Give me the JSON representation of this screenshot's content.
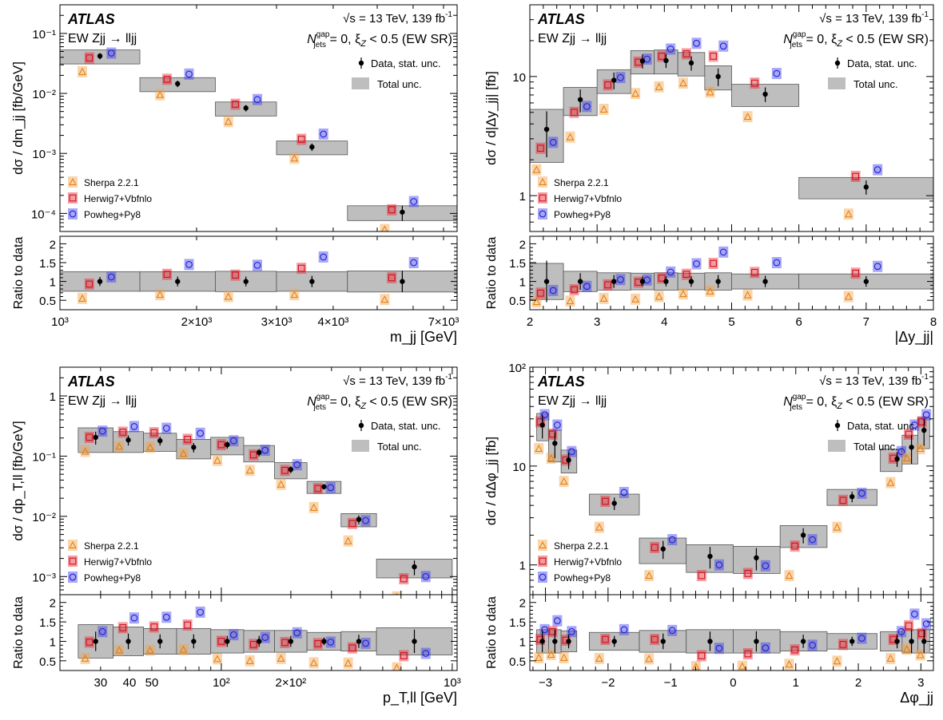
{
  "header": {
    "experiment": "ATLAS",
    "energy": "√s = 13 TeV, 139 fb",
    "energy_sup": "-1",
    "process": "EW Zjj → lljj",
    "region_pre": "N",
    "region_sup": "gap",
    "region_sub": "jets",
    "region_post": " = 0, ξ",
    "region_sub2": "Z",
    "region_tail": " < 0.5 (EW SR)"
  },
  "legend": {
    "data": "Data, stat. unc.",
    "total": "Total unc.",
    "sherpa": "Sherpa 2.2.1",
    "herwig": "Herwig7+Vbfnlo",
    "powheg": "Powheg+Py8"
  },
  "colors": {
    "data": "#000000",
    "total": "#bebebe",
    "sherpa": "#f5a142",
    "herwig": "#e8262f",
    "powheg": "#3b3cf0"
  },
  "ratio_ylabel": "Ratio to data",
  "chart_data": [
    {
      "type": "scatter",
      "panel": "mjj",
      "ylabel": "dσ / dm_jj [fb/GeV]",
      "xlabel": "m_jj [GeV]",
      "xscale": "log",
      "yscale": "log",
      "xlim": [
        1000,
        7500
      ],
      "ylim": [
        5e-05,
        0.3
      ],
      "ratio_ylim": [
        0.25,
        2.2
      ],
      "xticks": [
        [
          1000,
          "10³"
        ],
        [
          2000,
          "2×10³"
        ],
        [
          3000,
          "3×10³"
        ],
        [
          4000,
          "4×10³"
        ],
        [
          7000,
          "7×10³"
        ]
      ],
      "yticks": [
        [
          0.0001,
          "10⁻⁴"
        ],
        [
          0.001,
          "10⁻³"
        ],
        [
          0.01,
          "10⁻²"
        ],
        [
          0.1,
          "10⁻¹"
        ]
      ],
      "ratio_yticks": [
        [
          0.5,
          "0.5"
        ],
        [
          1,
          "1"
        ],
        [
          1.5,
          "1.5"
        ],
        [
          2,
          "2"
        ]
      ],
      "bins": [
        [
          1000,
          1500
        ],
        [
          1500,
          2200
        ],
        [
          2200,
          3000
        ],
        [
          3000,
          4300
        ],
        [
          4300,
          7500
        ]
      ],
      "data": [
        0.042,
        0.0145,
        0.0057,
        0.00128,
        0.000105
      ],
      "data_err": [
        0.005,
        0.0018,
        0.0007,
        0.00018,
        3e-05
      ],
      "total_err": [
        0.011,
        0.0038,
        0.0015,
        0.00033,
        2.9e-05
      ],
      "sherpa": [
        0.023,
        0.0095,
        0.0034,
        0.00083,
        5.4e-05
      ],
      "herwig": [
        0.039,
        0.0172,
        0.0066,
        0.00172,
        0.000115
      ],
      "powheg": [
        0.047,
        0.021,
        0.0079,
        0.0021,
        0.000158
      ],
      "ratio_data_err": [
        0.12,
        0.13,
        0.13,
        0.15,
        0.28
      ],
      "ratio_total": [
        0.26,
        0.26,
        0.27,
        0.26,
        0.28
      ],
      "ratio_sherpa": [
        0.55,
        0.65,
        0.6,
        0.65,
        0.52
      ],
      "ratio_herwig": [
        0.93,
        1.19,
        1.17,
        1.35,
        1.1
      ],
      "ratio_powheg": [
        1.12,
        1.45,
        1.43,
        1.65,
        1.5
      ]
    },
    {
      "type": "scatter",
      "panel": "dyjj",
      "ylabel": "dσ / d|Δy_jj| [fb]",
      "xlabel": "|Δy_jj|",
      "xscale": "linear",
      "yscale": "log",
      "xlim": [
        2,
        8
      ],
      "ylim": [
        0.5,
        40
      ],
      "ratio_ylim": [
        0.25,
        2.2
      ],
      "xticks": [
        [
          2,
          "2"
        ],
        [
          3,
          "3"
        ],
        [
          4,
          "4"
        ],
        [
          5,
          "5"
        ],
        [
          6,
          "6"
        ],
        [
          7,
          "7"
        ],
        [
          8,
          "8"
        ]
      ],
      "yticks": [
        [
          1,
          "1"
        ],
        [
          10,
          "10"
        ]
      ],
      "ratio_yticks": [
        [
          0.5,
          "0.5"
        ],
        [
          1,
          "1"
        ],
        [
          1.5,
          "1.5"
        ],
        [
          2,
          "2"
        ]
      ],
      "bins": [
        [
          2,
          2.5
        ],
        [
          2.5,
          3
        ],
        [
          3,
          3.5
        ],
        [
          3.5,
          3.85
        ],
        [
          3.85,
          4.2
        ],
        [
          4.2,
          4.6
        ],
        [
          4.6,
          5
        ],
        [
          5,
          6
        ],
        [
          6,
          8
        ]
      ],
      "data": [
        3.6,
        6.4,
        9.3,
        13.5,
        13.6,
        13.0,
        10.0,
        7.1,
        1.18
      ],
      "data_err": [
        1.5,
        1.4,
        1.5,
        1.8,
        1.8,
        1.8,
        1.7,
        1.0,
        0.16
      ],
      "total_err": [
        1.7,
        1.7,
        2.1,
        3.0,
        3.1,
        2.9,
        2.3,
        1.5,
        0.24
      ],
      "sherpa": [
        1.65,
        3.1,
        5.3,
        7.2,
        8.2,
        8.8,
        7.4,
        4.6,
        0.7
      ],
      "herwig": [
        2.5,
        5.0,
        8.5,
        13.2,
        14.8,
        15.5,
        14.8,
        8.8,
        1.45
      ],
      "powheg": [
        2.8,
        5.6,
        9.8,
        14.0,
        17.0,
        19.0,
        18.0,
        10.6,
        1.65
      ],
      "ratio_data_err": [
        0.55,
        0.22,
        0.17,
        0.13,
        0.13,
        0.14,
        0.17,
        0.15,
        0.14
      ],
      "ratio_total": [
        0.48,
        0.27,
        0.23,
        0.22,
        0.23,
        0.22,
        0.23,
        0.2,
        0.2
      ],
      "ratio_sherpa": [
        0.46,
        0.48,
        0.55,
        0.53,
        0.6,
        0.67,
        0.74,
        0.64,
        0.6
      ],
      "ratio_herwig": [
        0.69,
        0.78,
        0.91,
        0.98,
        1.09,
        1.19,
        1.48,
        1.24,
        1.22
      ],
      "ratio_powheg": [
        0.76,
        0.87,
        1.05,
        1.04,
        1.25,
        1.47,
        1.78,
        1.5,
        1.4
      ]
    },
    {
      "type": "scatter",
      "panel": "ptll",
      "ylabel": "dσ / dp_T,ll [fb/GeV]",
      "xlabel": "p_T,ll [GeV]",
      "xscale": "log",
      "yscale": "log",
      "xlim": [
        20,
        1050
      ],
      "ylim": [
        0.0005,
        3
      ],
      "ratio_ylim": [
        0.25,
        2.2
      ],
      "xticks": [
        [
          30,
          "30"
        ],
        [
          40,
          "40"
        ],
        [
          50,
          "50"
        ],
        [
          100,
          "10²"
        ],
        [
          200,
          "2×10²"
        ],
        [
          1000,
          "10³"
        ]
      ],
      "yticks": [
        [
          0.001,
          "10⁻³"
        ],
        [
          0.01,
          "10⁻²"
        ],
        [
          0.1,
          "10⁻¹"
        ],
        [
          1,
          "1"
        ]
      ],
      "ratio_yticks": [
        [
          0.5,
          "0.5"
        ],
        [
          1,
          "1"
        ],
        [
          1.5,
          "1.5"
        ],
        [
          2,
          "2"
        ]
      ],
      "bins": [
        [
          24,
          34
        ],
        [
          34,
          46
        ],
        [
          46,
          64
        ],
        [
          64,
          90
        ],
        [
          90,
          125
        ],
        [
          125,
          170
        ],
        [
          170,
          235
        ],
        [
          235,
          330
        ],
        [
          330,
          470
        ],
        [
          470,
          1000
        ]
      ],
      "data": [
        0.205,
        0.185,
        0.18,
        0.14,
        0.155,
        0.115,
        0.06,
        0.031,
        0.0089,
        0.00145
      ],
      "data_err": [
        0.05,
        0.035,
        0.03,
        0.025,
        0.022,
        0.016,
        0.008,
        0.003,
        0.0015,
        0.0004
      ],
      "total_err": [
        0.09,
        0.07,
        0.06,
        0.05,
        0.05,
        0.035,
        0.018,
        0.007,
        0.0022,
        0.0005
      ],
      "sherpa": [
        0.12,
        0.145,
        0.14,
        0.11,
        0.085,
        0.058,
        0.034,
        0.014,
        0.0039,
        0.00046
      ],
      "herwig": [
        0.205,
        0.25,
        0.245,
        0.19,
        0.155,
        0.105,
        0.058,
        0.029,
        0.0076,
        0.00092
      ],
      "powheg": [
        0.26,
        0.31,
        0.29,
        0.24,
        0.18,
        0.125,
        0.072,
        0.03,
        0.0085,
        0.001
      ],
      "ratio_data_err": [
        0.25,
        0.2,
        0.18,
        0.18,
        0.14,
        0.14,
        0.14,
        0.1,
        0.17,
        0.3
      ],
      "ratio_total": [
        0.43,
        0.37,
        0.33,
        0.33,
        0.3,
        0.28,
        0.28,
        0.23,
        0.25,
        0.35
      ],
      "ratio_sherpa": [
        0.56,
        0.77,
        0.77,
        0.79,
        0.55,
        0.5,
        0.56,
        0.45,
        0.44,
        0.32
      ],
      "ratio_herwig": [
        0.98,
        1.35,
        1.37,
        1.42,
        1.0,
        0.92,
        0.97,
        0.94,
        0.83,
        0.63
      ],
      "ratio_powheg": [
        1.25,
        1.6,
        1.62,
        1.75,
        1.17,
        1.1,
        1.22,
        0.98,
        0.95,
        0.69
      ]
    },
    {
      "type": "scatter",
      "panel": "dphijj",
      "ylabel": "dσ / dΔφ_jj [fb]",
      "xlabel": "Δφ_jj",
      "xscale": "linear",
      "yscale": "log",
      "xlim": [
        -3.25,
        3.2
      ],
      "ylim": [
        0.5,
        100
      ],
      "ratio_ylim": [
        0.25,
        2.2
      ],
      "xticks": [
        [
          -3,
          "−3"
        ],
        [
          -2,
          "−2"
        ],
        [
          -1,
          "−1"
        ],
        [
          0,
          "0"
        ],
        [
          1,
          "1"
        ],
        [
          2,
          "2"
        ],
        [
          3,
          "3"
        ]
      ],
      "yticks": [
        [
          1,
          "1"
        ],
        [
          10,
          "10"
        ],
        [
          100,
          "10²"
        ]
      ],
      "ratio_yticks": [
        [
          0.5,
          "0.5"
        ],
        [
          1,
          "1"
        ],
        [
          1.5,
          "1.5"
        ],
        [
          2,
          "2"
        ]
      ],
      "bins": [
        [
          -3.14,
          -2.95
        ],
        [
          -2.95,
          -2.75
        ],
        [
          -2.75,
          -2.5
        ],
        [
          -2.3,
          -1.5
        ],
        [
          -1.5,
          -0.75
        ],
        [
          -0.75,
          0
        ],
        [
          0,
          0.75
        ],
        [
          0.75,
          1.5
        ],
        [
          1.5,
          2.3
        ],
        [
          2.35,
          2.7
        ],
        [
          2.7,
          2.95
        ],
        [
          2.95,
          3.14
        ]
      ],
      "x_centers": [
        -3.05,
        -2.85,
        -2.63,
        -1.9,
        -1.12,
        -0.37,
        0.37,
        1.12,
        1.9,
        2.62,
        2.85,
        3.05
      ],
      "data": [
        26,
        17,
        11.5,
        4.2,
        1.45,
        1.22,
        1.18,
        2.0,
        4.9,
        11.8,
        15.5,
        23
      ],
      "data_err": [
        7,
        5,
        2.2,
        0.6,
        0.3,
        0.3,
        0.3,
        0.35,
        0.6,
        2.0,
        5,
        7
      ],
      "total_err": [
        8,
        6,
        3,
        1.0,
        0.42,
        0.38,
        0.36,
        0.5,
        0.9,
        3,
        5,
        8
      ],
      "sherpa": [
        15,
        12,
        7,
        2.4,
        0.78,
        0.42,
        0.42,
        0.78,
        2.4,
        6.8,
        12,
        15
      ],
      "herwig": [
        28,
        21,
        11.5,
        4.4,
        1.5,
        0.78,
        0.82,
        1.55,
        4.5,
        12,
        21,
        28
      ],
      "powheg": [
        33,
        26,
        14,
        5.4,
        1.8,
        1.0,
        0.98,
        1.8,
        5.3,
        14,
        26,
        33
      ],
      "ratio_data_err": [
        0.28,
        0.3,
        0.18,
        0.14,
        0.2,
        0.25,
        0.26,
        0.17,
        0.12,
        0.18,
        0.3,
        0.3
      ],
      "ratio_total": [
        0.3,
        0.3,
        0.27,
        0.23,
        0.28,
        0.3,
        0.3,
        0.25,
        0.2,
        0.25,
        0.3,
        0.3
      ],
      "ratio_sherpa": [
        0.58,
        0.66,
        0.58,
        0.56,
        0.55,
        0.35,
        0.36,
        0.41,
        0.49,
        0.56,
        0.8,
        0.65
      ],
      "ratio_herwig": [
        1.05,
        1.25,
        1.03,
        1.05,
        1.05,
        0.63,
        0.68,
        0.78,
        0.92,
        1.05,
        1.4,
        1.2
      ],
      "ratio_powheg": [
        1.3,
        1.53,
        1.25,
        1.3,
        1.28,
        0.82,
        0.83,
        0.9,
        1.08,
        1.25,
        1.7,
        1.45
      ]
    }
  ]
}
